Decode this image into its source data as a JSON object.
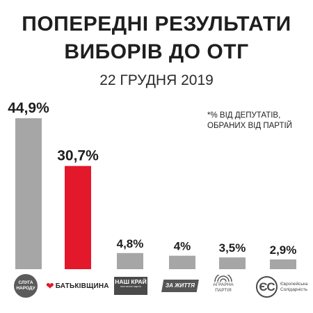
{
  "heading": {
    "title_line1": "ПОПЕРЕДНІ РЕЗУЛЬТАТИ",
    "title_line2": "ВИБОРІВ ДО ОТГ",
    "date": "22 ГРУДНЯ 2019"
  },
  "note": {
    "line1": "*% ВІД ДЕПУТАТІВ,",
    "line2": "ОБРАНИХ ВІД ПАРТІЙ"
  },
  "colors": {
    "bar_default": "#a6a6a6",
    "bar_highlight": "#e4182b",
    "text": "#1e1e1e"
  },
  "chart_data": {
    "type": "bar",
    "title": "ПОПЕРЕДНІ РЕЗУЛЬТАТИ ВИБОРІВ ДО ОТГ",
    "subtitle": "22 ГРУДНЯ 2019",
    "categories": [
      "Слуга народу",
      "Батьківщина",
      "Наш Край",
      "За життя",
      "Аграрна партія",
      "Європейська Солідарність"
    ],
    "values": [
      44.9,
      30.7,
      4.8,
      4,
      3.5,
      2.9
    ],
    "value_labels": [
      "44,9%",
      "30,7%",
      "4,8%",
      "4%",
      "3,5%",
      "2,9%"
    ],
    "highlight_index": 1,
    "ylim": [
      0,
      44.9
    ],
    "grid": false,
    "legend": "none"
  },
  "logos": {
    "sluha": [
      "СЛУГА",
      "НАРОДУ"
    ],
    "batkivshchyna": "БАТЬКІВЩИНА",
    "nash_krai": "НАШ КРАЙ",
    "nash_krai_sub": "політична партія",
    "za_zhyttia": "ЗА ЖИТТЯ",
    "ahrarna": [
      "АГРАРНА",
      "ПАРТІЯ"
    ],
    "es_mark": "ЄС",
    "es_text": [
      "Європейська",
      "Солідарність"
    ],
    "icons": {
      "sluha": "sluha-narodu-logo-icon",
      "batkivshchyna": "heart-icon",
      "ahrarna": "ahrarna-arcs-icon",
      "es": "es-logo-icon"
    }
  }
}
